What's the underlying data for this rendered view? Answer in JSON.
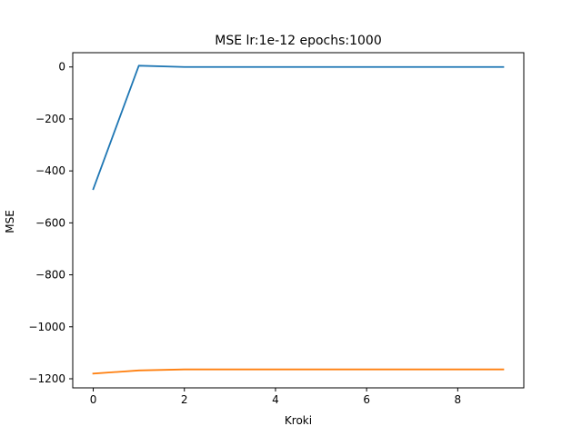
{
  "chart_data": {
    "type": "line",
    "title": "MSE lr:1e-12 epochs:1000",
    "xlabel": "Kroki",
    "ylabel": "MSE",
    "xlim": [
      -0.45,
      9.45
    ],
    "ylim": [
      -1235,
      55
    ],
    "xticks": [
      0,
      2,
      4,
      6,
      8
    ],
    "yticks": [
      0,
      -200,
      -400,
      -600,
      -800,
      -1000,
      -1200
    ],
    "grid": false,
    "series": [
      {
        "color": "#1f77b4",
        "x": [
          0,
          1,
          2,
          3,
          4,
          5,
          6,
          7,
          8,
          9
        ],
        "y": [
          -470,
          5,
          0,
          0,
          0,
          0,
          0,
          0,
          0,
          0
        ]
      },
      {
        "color": "#ff7f0e",
        "x": [
          0,
          1,
          2,
          3,
          4,
          5,
          6,
          7,
          8,
          9
        ],
        "y": [
          -1180,
          -1168,
          -1164,
          -1164,
          -1164,
          -1164,
          -1164,
          -1164,
          -1164,
          -1164
        ]
      }
    ]
  }
}
